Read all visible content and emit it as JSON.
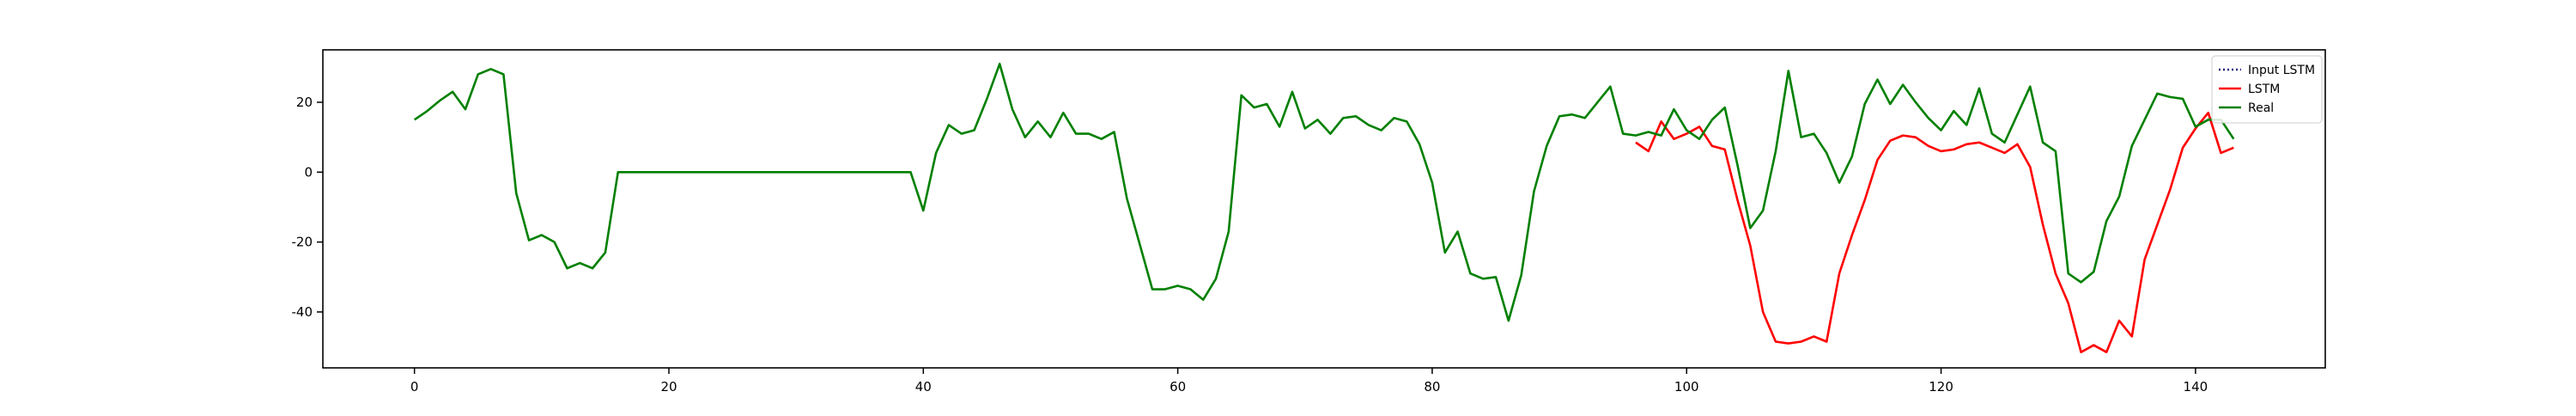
{
  "chart_data": {
    "type": "line",
    "title": "",
    "xlabel": "",
    "ylabel": "",
    "xlim": [
      -7.2,
      150.2
    ],
    "ylim": [
      -56,
      35
    ],
    "grid": false,
    "legend_position": "top-right",
    "x_ticks": [
      0,
      20,
      40,
      60,
      80,
      100,
      120,
      140
    ],
    "y_ticks": [
      -40,
      -20,
      0,
      20
    ],
    "series": [
      {
        "name": "Input LSTM",
        "color": "#1f1f7a",
        "style": "dotted",
        "x": [],
        "values": []
      },
      {
        "name": "LSTM",
        "color": "#ff0000",
        "style": "solid",
        "x_start": 96,
        "values": [
          8.5,
          6,
          14.5,
          9.5,
          11,
          13,
          7.5,
          6.5,
          -8,
          -21,
          -40,
          -48.5,
          -49,
          -48.5,
          -47,
          -48.5,
          -29,
          -18,
          -8,
          3.5,
          9,
          10.5,
          10,
          7.5,
          6,
          6.5,
          8,
          8.5,
          7,
          5.5,
          8,
          1.5,
          -15,
          -29,
          -37.5,
          -51.5,
          -49.5,
          -51.5,
          -42.5,
          -47,
          -25,
          -15,
          -5,
          7,
          12.5,
          17,
          5.5,
          7
        ]
      },
      {
        "name": "Real",
        "color": "#008000",
        "style": "solid",
        "x_start": 0,
        "values": [
          15,
          17.5,
          20.5,
          23,
          18,
          28,
          29.5,
          28,
          -6,
          -19.5,
          -18,
          -20,
          -27.5,
          -26,
          -27.5,
          -23,
          0,
          0,
          0,
          0,
          0,
          0,
          0,
          0,
          0,
          0,
          0,
          0,
          0,
          0,
          0,
          0,
          0,
          0,
          0,
          0,
          0,
          0,
          0,
          0,
          -11,
          5.5,
          13.5,
          11,
          12,
          21,
          31,
          18,
          10,
          14.5,
          10,
          17,
          11,
          11,
          9.5,
          11.5,
          -7.5,
          -20.5,
          -33.5,
          -33.5,
          -32.5,
          -33.5,
          -36.5,
          -30.5,
          -17,
          22,
          18.5,
          19.5,
          13,
          23,
          12.5,
          15,
          11,
          15.5,
          16,
          13.5,
          12,
          15.5,
          14.5,
          8,
          -3,
          -23,
          -17,
          -29,
          -30.5,
          -30,
          -42.5,
          -29.5,
          -5.5,
          7.5,
          16,
          16.5,
          15.5,
          20,
          24.5,
          11,
          10.5,
          11.5,
          10.5,
          18,
          12,
          9.5,
          15,
          18.5,
          2,
          -16,
          -11,
          6,
          29,
          10,
          11,
          5.5,
          -3,
          4.5,
          19.5,
          26.5,
          19.5,
          25,
          20,
          15.5,
          12,
          17.5,
          13.5,
          24,
          11,
          8.5,
          16.5,
          24.5,
          8.5,
          6,
          -29,
          -31.5,
          -28.5,
          -14,
          -7,
          7.5,
          15,
          22.5,
          21.5,
          21,
          13,
          15,
          15,
          9.5
        ]
      }
    ]
  }
}
